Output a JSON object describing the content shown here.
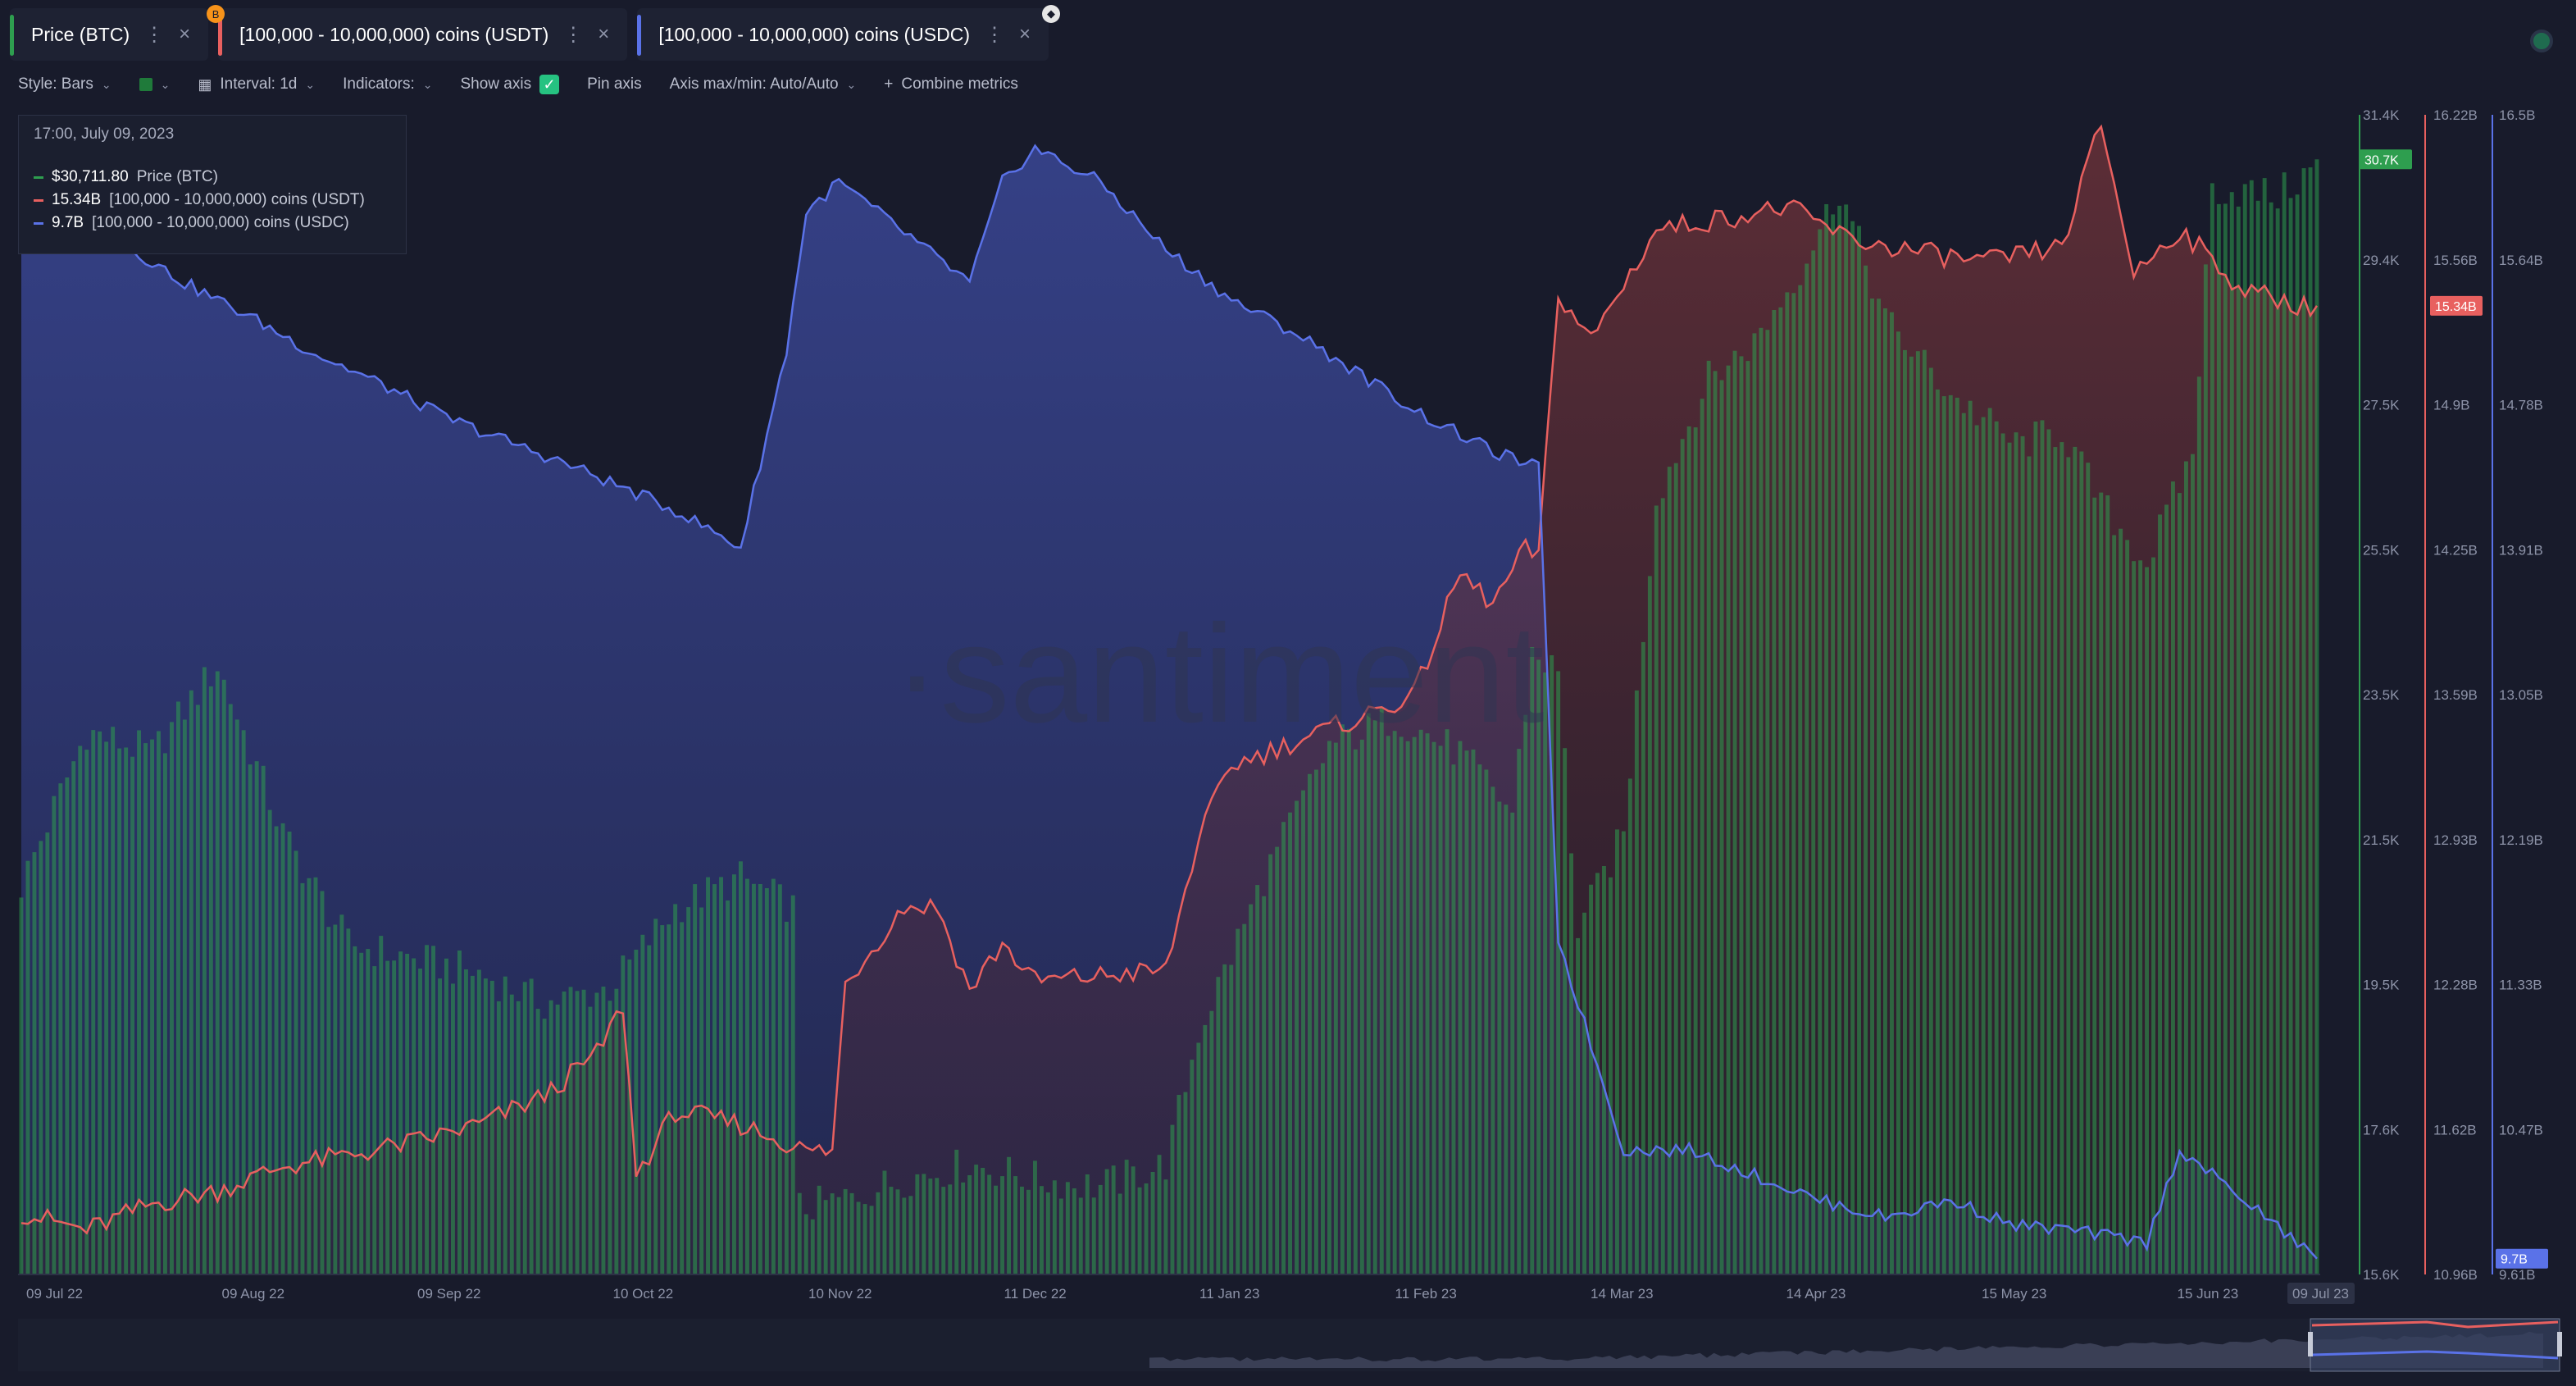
{
  "tabs": [
    {
      "label": "Price (BTC)",
      "color": "#2e9e4f",
      "icon": "lock-icon",
      "badge": "",
      "badge_color": ""
    },
    {
      "label": "[100,000 - 10,000,000) coins (USDT)",
      "color": "#e8605f",
      "icon": "lock-icon",
      "badge": "B",
      "badge_color": "#f7931a"
    },
    {
      "label": "[100,000 - 10,000,000) coins (USDC)",
      "color": "#5a72e8",
      "icon": "ethereum-icon",
      "badge": "",
      "badge_color": ""
    }
  ],
  "toolbar": {
    "style": "Style: Bars",
    "interval": "Interval: 1d",
    "indicators": "Indicators:",
    "show_axis": "Show axis",
    "pin_axis": "Pin axis",
    "axis_maxmin": "Axis max/min: Auto/Auto",
    "combine": "Combine metrics"
  },
  "tooltip": {
    "date": "17:00, July 09, 2023",
    "rows": [
      {
        "value": "$30,711.80",
        "label": "Price (BTC)",
        "color": "#2e9e4f"
      },
      {
        "value": "15.34B",
        "label": "[100,000  - 10,000,000) coins (USDT)",
        "color": "#e8605f"
      },
      {
        "value": "9.7B",
        "label": "[100,000  - 10,000,000) coins (USDC)",
        "color": "#5a72e8"
      }
    ]
  },
  "watermark": "·santiment",
  "chart_data": {
    "type": "bar",
    "x_ticks": [
      "09 Jul 22",
      "09 Aug 22",
      "09 Sep 22",
      "10 Oct 22",
      "10 Nov 22",
      "11 Dec 22",
      "11 Jan 23",
      "11 Feb 23",
      "14 Mar 23",
      "14 Apr 23",
      "15 May 23",
      "15 Jun 23",
      "09 Jul 23"
    ],
    "axes": [
      {
        "name": "Price (BTC)",
        "ticks": [
          "31.4K",
          "29.4K",
          "27.5K",
          "25.5K",
          "23.5K",
          "21.5K",
          "19.5K",
          "17.6K",
          "15.6K"
        ],
        "ylim": [
          15600,
          31400
        ],
        "last_label": "30.7K",
        "color": "#2e9e4f"
      },
      {
        "name": "USDT",
        "ticks": [
          "16.22B",
          "15.56B",
          "14.9B",
          "14.25B",
          "13.59B",
          "12.93B",
          "12.28B",
          "11.62B",
          "10.96B"
        ],
        "ylim": [
          10.96,
          16.22
        ],
        "last_label": "15.34B",
        "color": "#e8605f"
      },
      {
        "name": "USDC",
        "ticks": [
          "16.5B",
          "15.64B",
          "14.78B",
          "13.91B",
          "13.05B",
          "12.19B",
          "11.33B",
          "10.47B",
          "9.61B"
        ],
        "ylim": [
          9.61,
          16.5
        ],
        "last_label": "9.7B",
        "color": "#5a72e8"
      }
    ],
    "series": [
      {
        "name": "Price (BTC)",
        "type": "bar",
        "color": "#2e9e4f",
        "knots": [
          [
            0,
            20900
          ],
          [
            10,
            23000
          ],
          [
            20,
            22700
          ],
          [
            30,
            23900
          ],
          [
            40,
            21600
          ],
          [
            50,
            20100
          ],
          [
            60,
            19900
          ],
          [
            70,
            19700
          ],
          [
            80,
            19300
          ],
          [
            90,
            19500
          ],
          [
            100,
            20600
          ],
          [
            110,
            21000
          ],
          [
            118,
            20600
          ],
          [
            119,
            16500
          ],
          [
            125,
            16600
          ],
          [
            135,
            16900
          ],
          [
            145,
            17100
          ],
          [
            155,
            16900
          ],
          [
            165,
            16800
          ],
          [
            175,
            17100
          ],
          [
            180,
            18900
          ],
          [
            190,
            21000
          ],
          [
            200,
            22800
          ],
          [
            210,
            23200
          ],
          [
            220,
            22700
          ],
          [
            228,
            21900
          ],
          [
            231,
            24100
          ],
          [
            235,
            23800
          ],
          [
            238,
            20300
          ],
          [
            245,
            21600
          ],
          [
            250,
            26200
          ],
          [
            258,
            27800
          ],
          [
            265,
            28300
          ],
          [
            272,
            29300
          ],
          [
            278,
            30400
          ],
          [
            285,
            28600
          ],
          [
            295,
            27600
          ],
          [
            305,
            26900
          ],
          [
            312,
            27100
          ],
          [
            318,
            26100
          ],
          [
            325,
            25300
          ],
          [
            332,
            26800
          ],
          [
            335,
            30400
          ],
          [
            345,
            30300
          ],
          [
            351,
            30700
          ]
        ]
      },
      {
        "name": "[100,000 - 10,000,000) coins (USDT)",
        "type": "line",
        "color": "#e8605f",
        "knots": [
          [
            0,
            11.24
          ],
          [
            10,
            11.16
          ],
          [
            20,
            11.28
          ],
          [
            30,
            11.34
          ],
          [
            40,
            11.45
          ],
          [
            50,
            11.5
          ],
          [
            60,
            11.56
          ],
          [
            70,
            11.64
          ],
          [
            80,
            11.77
          ],
          [
            88,
            11.96
          ],
          [
            92,
            12.18
          ],
          [
            94,
            11.41
          ],
          [
            100,
            11.7
          ],
          [
            110,
            11.64
          ],
          [
            120,
            11.52
          ],
          [
            124,
            11.52
          ],
          [
            126,
            12.28
          ],
          [
            135,
            12.63
          ],
          [
            140,
            12.63
          ],
          [
            145,
            12.25
          ],
          [
            150,
            12.46
          ],
          [
            155,
            12.29
          ],
          [
            175,
            12.34
          ],
          [
            180,
            12.94
          ],
          [
            185,
            13.27
          ],
          [
            195,
            13.38
          ],
          [
            205,
            13.49
          ],
          [
            213,
            13.59
          ],
          [
            220,
            14.14
          ],
          [
            225,
            14.0
          ],
          [
            230,
            14.25
          ],
          [
            232,
            14.22
          ],
          [
            235,
            15.41
          ],
          [
            240,
            15.2
          ],
          [
            250,
            15.7
          ],
          [
            260,
            15.75
          ],
          [
            270,
            15.8
          ],
          [
            280,
            15.65
          ],
          [
            290,
            15.6
          ],
          [
            300,
            15.55
          ],
          [
            312,
            15.62
          ],
          [
            318,
            16.18
          ],
          [
            323,
            15.5
          ],
          [
            330,
            15.7
          ],
          [
            340,
            15.42
          ],
          [
            351,
            15.34
          ]
        ]
      },
      {
        "name": "[100,000 - 10,000,000) coins (USDC)",
        "type": "line",
        "color": "#5a72e8",
        "knots": [
          [
            0,
            16.0
          ],
          [
            5,
            15.9
          ],
          [
            15,
            15.75
          ],
          [
            25,
            15.5
          ],
          [
            35,
            15.3
          ],
          [
            45,
            15.08
          ],
          [
            55,
            14.9
          ],
          [
            65,
            14.7
          ],
          [
            75,
            14.55
          ],
          [
            85,
            14.4
          ],
          [
            100,
            14.15
          ],
          [
            110,
            13.93
          ],
          [
            117,
            15.1
          ],
          [
            120,
            15.92
          ],
          [
            125,
            16.1
          ],
          [
            135,
            15.8
          ],
          [
            145,
            15.5
          ],
          [
            150,
            16.1
          ],
          [
            155,
            16.3
          ],
          [
            165,
            16.1
          ],
          [
            175,
            15.7
          ],
          [
            185,
            15.4
          ],
          [
            195,
            15.2
          ],
          [
            205,
            14.95
          ],
          [
            215,
            14.7
          ],
          [
            225,
            14.5
          ],
          [
            232,
            14.4
          ],
          [
            235,
            11.6
          ],
          [
            245,
            10.35
          ],
          [
            255,
            10.35
          ],
          [
            265,
            10.2
          ],
          [
            275,
            10.05
          ],
          [
            285,
            9.95
          ],
          [
            295,
            10.05
          ],
          [
            305,
            9.9
          ],
          [
            312,
            9.88
          ],
          [
            325,
            9.8
          ],
          [
            330,
            10.35
          ],
          [
            340,
            10.05
          ],
          [
            351,
            9.7
          ]
        ]
      }
    ],
    "title": "",
    "grid": false,
    "legend": "none"
  }
}
